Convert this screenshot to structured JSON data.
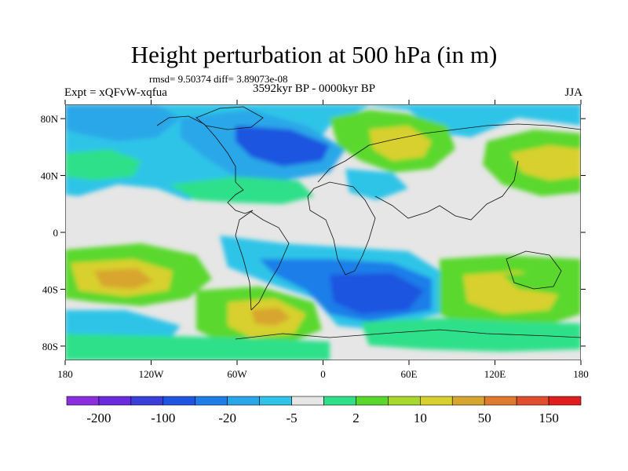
{
  "title": "Height perturbation at 500 hPa (in m)",
  "stats": "rmsd= 9.50374 diff= 3.89073e-08",
  "experiment": "Expt = xQFvW-xqfua",
  "period": "3592kyr BP - 0000kyr BP",
  "season": "JJA",
  "map": {
    "y_ticks": [
      {
        "label": "80N",
        "lat": 80
      },
      {
        "label": "40N",
        "lat": 40
      },
      {
        "label": "0",
        "lat": 0
      },
      {
        "label": "40S",
        "lat": -40
      },
      {
        "label": "80S",
        "lat": -80
      }
    ],
    "x_ticks": [
      {
        "label": "180",
        "lon": -180
      },
      {
        "label": "120W",
        "lon": -120
      },
      {
        "label": "60W",
        "lon": -60
      },
      {
        "label": "0",
        "lon": 0
      },
      {
        "label": "60E",
        "lon": 60
      },
      {
        "label": "120E",
        "lon": 120
      },
      {
        "label": "180",
        "lon": 180
      }
    ]
  },
  "colorbar": {
    "colors": [
      "#8b2ee0",
      "#6a2ae0",
      "#3a3fd8",
      "#1f55e0",
      "#1f7ee8",
      "#2aa7e8",
      "#2fc4e8",
      "#e6e6e6",
      "#2ee08a",
      "#5ad82e",
      "#a6d82e",
      "#d8d02e",
      "#d8a52e",
      "#e07a2e",
      "#e04e2e",
      "#e01e1e"
    ],
    "labels": [
      {
        "text": "-200",
        "after_box": 1
      },
      {
        "text": "-100",
        "after_box": 3
      },
      {
        "text": "-20",
        "after_box": 5
      },
      {
        "text": "-5",
        "after_box": 7
      },
      {
        "text": "2",
        "after_box": 9
      },
      {
        "text": "10",
        "after_box": 11
      },
      {
        "text": "50",
        "after_box": 13
      },
      {
        "text": "150",
        "after_box": 15
      }
    ]
  }
}
